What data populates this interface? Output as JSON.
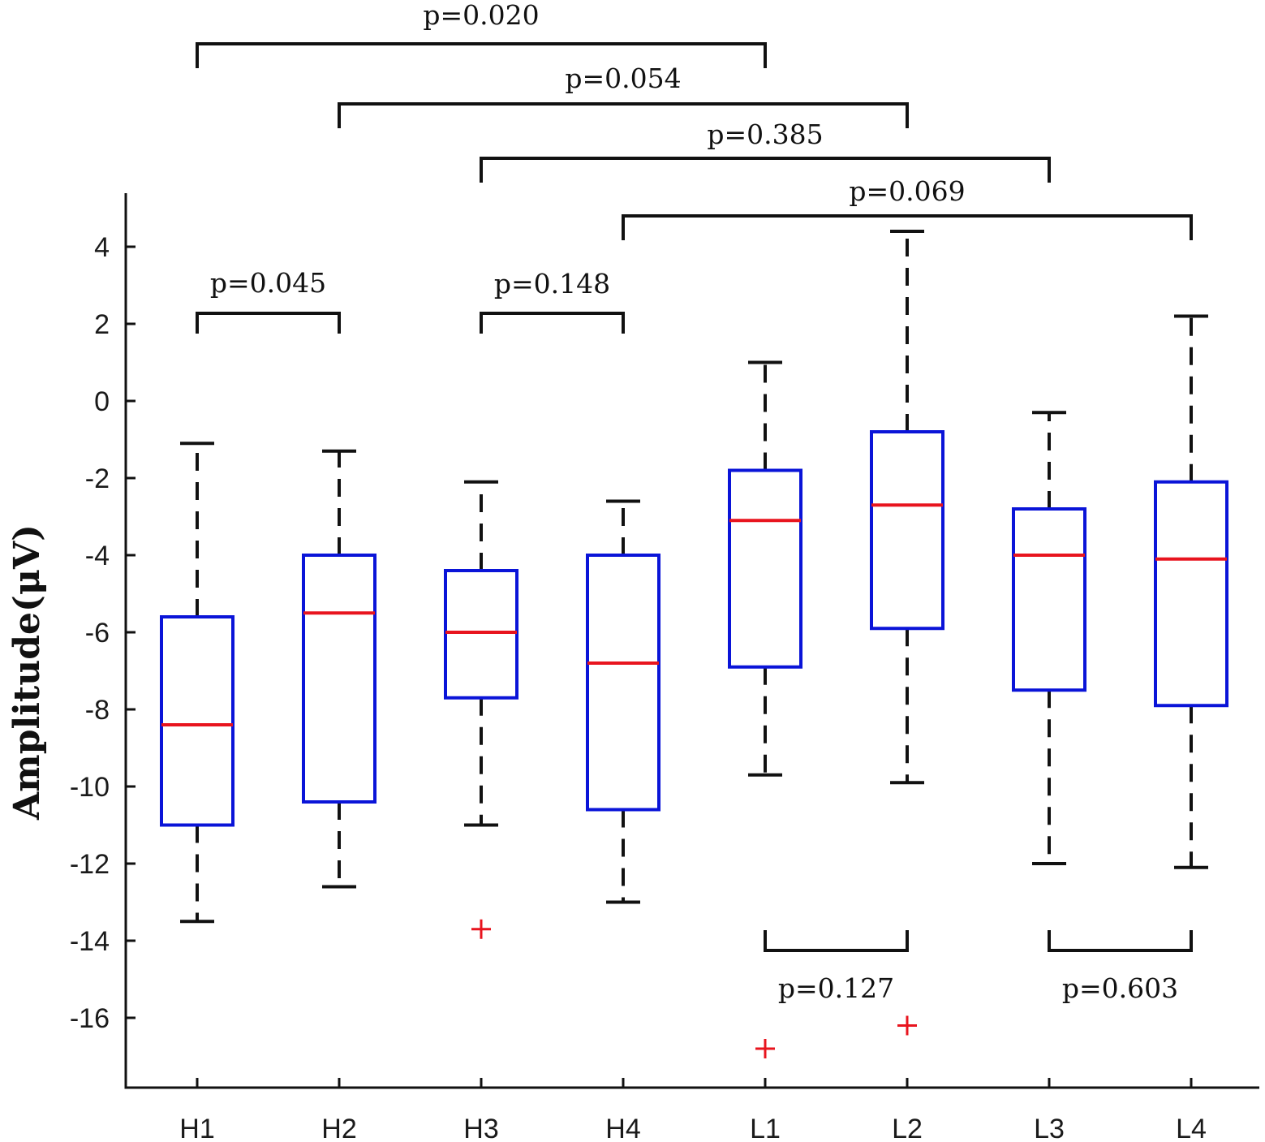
{
  "chart_data": {
    "type": "box",
    "categories": [
      "H1",
      "H2",
      "H3",
      "H4",
      "L1",
      "L2",
      "L3",
      "L4"
    ],
    "ylabel": "Amplitude(μV)",
    "xlabel": "",
    "ylim": [
      -17.5,
      5.5
    ],
    "yticks": [
      4,
      2,
      0,
      -2,
      -4,
      -6,
      -8,
      -10,
      -12,
      -14,
      -16
    ],
    "ytick_labels": [
      "4",
      "2",
      "0",
      "-2",
      "-4",
      "-6",
      "-8",
      "-10",
      "-12",
      "-14",
      "-16"
    ],
    "boxes": [
      {
        "label": "H1",
        "whisker_low": -13.5,
        "q1": -11.0,
        "median": -8.4,
        "q3": -5.6,
        "whisker_high": -1.1,
        "outliers": []
      },
      {
        "label": "H2",
        "whisker_low": -12.6,
        "q1": -10.4,
        "median": -5.5,
        "q3": -4.0,
        "whisker_high": -1.3,
        "outliers": []
      },
      {
        "label": "H3",
        "whisker_low": -11.0,
        "q1": -7.7,
        "median": -6.0,
        "q3": -4.4,
        "whisker_high": -2.1,
        "outliers": [
          -13.7
        ]
      },
      {
        "label": "H4",
        "whisker_low": -13.0,
        "q1": -10.6,
        "median": -6.8,
        "q3": -4.0,
        "whisker_high": -2.6,
        "outliers": []
      },
      {
        "label": "L1",
        "whisker_low": -9.7,
        "q1": -6.9,
        "median": -3.1,
        "q3": -1.8,
        "whisker_high": 1.0,
        "outliers": [
          -16.8
        ]
      },
      {
        "label": "L2",
        "whisker_low": -9.9,
        "q1": -5.9,
        "median": -2.7,
        "q3": -0.8,
        "whisker_high": 4.4,
        "outliers": [
          -16.2
        ]
      },
      {
        "label": "L3",
        "whisker_low": -12.0,
        "q1": -7.5,
        "median": -4.0,
        "q3": -2.8,
        "whisker_high": -0.3,
        "outliers": []
      },
      {
        "label": "L4",
        "whisker_low": -12.1,
        "q1": -7.9,
        "median": -4.1,
        "q3": -2.1,
        "whisker_high": 2.2,
        "outliers": []
      }
    ],
    "comparisons": [
      {
        "from": "H1",
        "to": "L1",
        "label": "p=0.020",
        "placement": "above"
      },
      {
        "from": "H2",
        "to": "L2",
        "label": "p=0.054",
        "placement": "above"
      },
      {
        "from": "H3",
        "to": "L3",
        "label": "p=0.385",
        "placement": "above"
      },
      {
        "from": "H4",
        "to": "L4",
        "label": "p=0.069",
        "placement": "above"
      },
      {
        "from": "H1",
        "to": "H2",
        "label": "p=0.045",
        "placement": "above"
      },
      {
        "from": "H3",
        "to": "H4",
        "label": "p=0.148",
        "placement": "above"
      },
      {
        "from": "L1",
        "to": "L2",
        "label": "p=0.127",
        "placement": "below"
      },
      {
        "from": "L3",
        "to": "L4",
        "label": "p=0.603",
        "placement": "below"
      }
    ],
    "colors": {
      "box": "#0a14d8",
      "median": "#e8141e",
      "whisker": "#111111",
      "outlier": "#e8141e",
      "axis": "#111111",
      "bracket": "#111111"
    }
  }
}
